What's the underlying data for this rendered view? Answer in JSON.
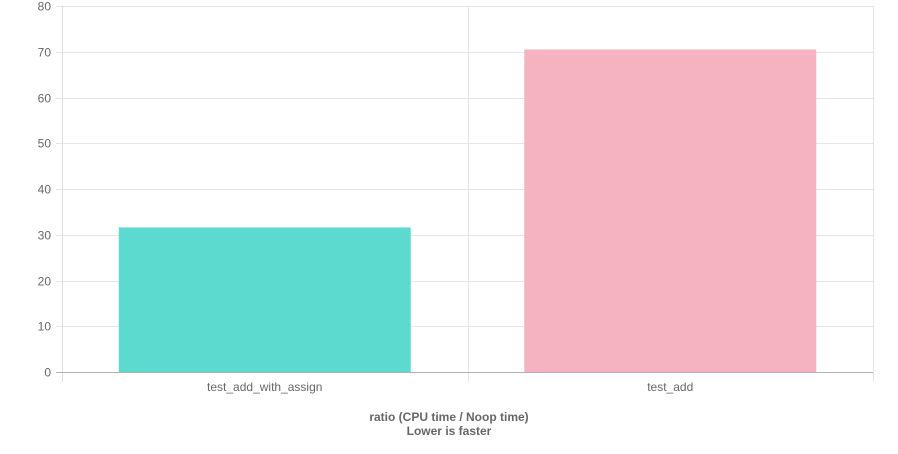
{
  "chart_data": {
    "type": "bar",
    "categories": [
      "test_add_with_assign",
      "test_add"
    ],
    "values": [
      31.6,
      70.5
    ],
    "bar_colors": [
      "#5ddacf",
      "#f5b3c1"
    ],
    "xlabel": "ratio (CPU time / Noop time)",
    "xlabel_line2": "Lower is faster",
    "ylabel": "",
    "ylim": [
      0,
      80
    ],
    "yticks": [
      0,
      10,
      20,
      30,
      40,
      50,
      60,
      70,
      80
    ],
    "grid": true,
    "legend": "none",
    "grid_color": "#e5e5e5",
    "axis_color": "#b0b0b0",
    "tick_text_color": "#666666"
  }
}
